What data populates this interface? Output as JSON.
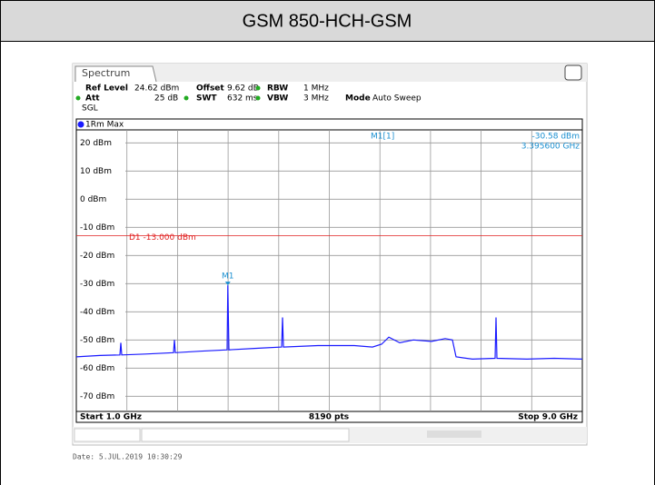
{
  "header": {
    "title": "GSM 850-HCH-GSM"
  },
  "chart_data": {
    "type": "line",
    "tab": "Spectrum",
    "settings": [
      [
        "Ref Level",
        "24.62 dBm",
        "Offset",
        "9.62 dB",
        "RBW",
        "1 MHz"
      ],
      [
        "Att",
        "25 dB",
        "SWT",
        "632 ms",
        "VBW",
        "3 MHz",
        "Mode",
        "Auto Sweep"
      ]
    ],
    "sweep": "SGL",
    "trace_label": "1Rm Max",
    "start_label": "Start 1.0 GHz",
    "points_label": "8190 pts",
    "stop_label": "Stop 9.0 GHz",
    "date": "Date: 5.JUL.2019  10:30:29",
    "xlim": [
      1.0,
      9.0
    ],
    "ylim": [
      -75.38,
      24.62
    ],
    "yticks": [
      {
        "value": 20,
        "label": "20 dBm"
      },
      {
        "value": 10,
        "label": "10 dBm"
      },
      {
        "value": 0,
        "label": "0 dBm"
      },
      {
        "value": -10,
        "label": "-10 dBm"
      },
      {
        "value": -20,
        "label": "-20 dBm"
      },
      {
        "value": -30,
        "label": "-30 dBm"
      },
      {
        "value": -40,
        "label": "-40 dBm"
      },
      {
        "value": -50,
        "label": "-50 dBm"
      },
      {
        "value": -60,
        "label": "-60 dBm"
      },
      {
        "value": -70,
        "label": "-70 dBm"
      }
    ],
    "grid": true,
    "x": [
      1.0,
      1.373,
      1.689,
      1.704,
      1.718,
      2.092,
      2.537,
      2.551,
      2.566,
      2.953,
      3.384,
      3.3956,
      3.413,
      3.815,
      4.246,
      4.26,
      4.274,
      4.82,
      5.395,
      5.682,
      5.826,
      5.941,
      6.113,
      6.329,
      6.616,
      6.831,
      6.946,
      7.004,
      7.262,
      7.621,
      7.636,
      7.65,
      8.124,
      8.555,
      9.0
    ],
    "series": [
      {
        "name": "1Rm Max",
        "color": "#1a1aff",
        "values": [
          -56,
          -55.5,
          -55.3,
          -51,
          -55.3,
          -55,
          -54.5,
          -50,
          -54.5,
          -54,
          -53.5,
          -30.58,
          -53.5,
          -53,
          -52.5,
          -42,
          -52.5,
          -52,
          -52,
          -52.5,
          -51.5,
          -49,
          -51,
          -50,
          -50.5,
          -49.5,
          -50,
          -56,
          -56.8,
          -56.5,
          -42,
          -56.5,
          -56.8,
          -56.5,
          -56.8
        ]
      }
    ],
    "marker": {
      "name": "M1",
      "readout": "M1[1]",
      "x": 3.3956,
      "value": -30.58,
      "value_label": "-30.58 dBm",
      "x_label": "3.395600 GHz",
      "color": "#1a8fd0"
    },
    "display_line": {
      "label": "D1 -13.000 dBm",
      "value": -13,
      "color": "#e02020"
    }
  }
}
